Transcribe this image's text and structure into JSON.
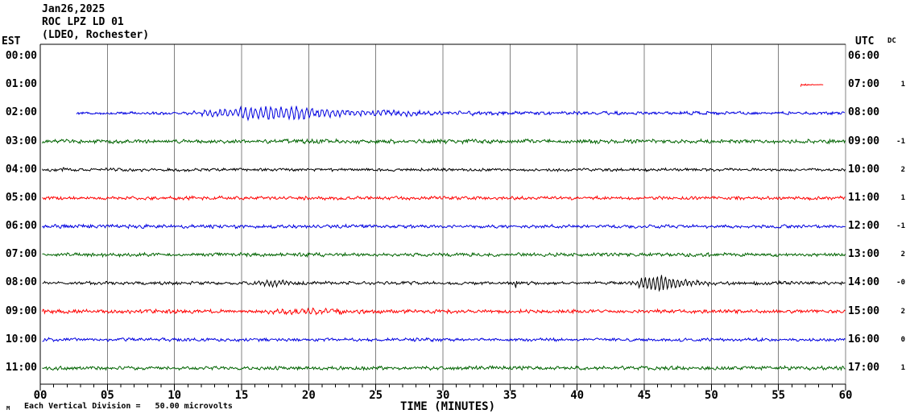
{
  "window": {
    "title_date": "Jan26,2025",
    "title_station": "ROC LPZ LD 01",
    "title_location": "(LDEO, Rochester)"
  },
  "axes": {
    "left_header": "EST",
    "right_header": "UTC",
    "dc_header": "DC",
    "xlabel": "TIME (MINUTES)",
    "x_tick_labels": [
      "00",
      "05",
      "10",
      "15",
      "20",
      "25",
      "30",
      "35",
      "40",
      "45",
      "50",
      "55",
      "60"
    ]
  },
  "footer": {
    "watermark": "M",
    "scale_note": "Each Vertical Division =   50.00 microvolts"
  },
  "colors": {
    "background": "#ffffff",
    "frame": "#000000",
    "grid": "#808080",
    "black": "#000000",
    "red": "#ff0000",
    "blue": "#0000e0",
    "green": "#006400"
  },
  "chart_data": {
    "type": "line",
    "title": "Helicorder ROC LPZ LD 01 (LDEO, Rochester) Jan26,2025",
    "xlabel": "TIME (MINUTES)",
    "x_range": [
      0,
      60
    ],
    "x_major_tick": 5,
    "x_minor_tick": 1,
    "scale_note": "Each Vertical Division = 50.00 microvolts",
    "events": [
      {
        "row_est": "01:00",
        "row_utc": "07:00",
        "start_min": 56.7,
        "end_min": 58.3,
        "description": "short red glitch/calibration mark"
      },
      {
        "row_est": "02:00",
        "row_utc": "08:00",
        "start_min": 11,
        "end_min": 38,
        "description": "emergent oscillatory event, peak amplitude ~min 15-20"
      },
      {
        "row_est": "08:00",
        "row_utc": "14:00",
        "start_min": 43.5,
        "end_min": 52,
        "description": "event burst peaking ~min 46; isolated spike at min 35.5"
      }
    ],
    "rows": [
      {
        "est": "00:00",
        "utc": "06:00",
        "dc": "",
        "color_key": "black",
        "trace": null
      },
      {
        "est": "01:00",
        "utc": "07:00",
        "dc": "1",
        "color_key": "red",
        "trace": {
          "start": 56.65,
          "end": 58.35,
          "seed": 7,
          "osc_period": 0.3,
          "spikes": [],
          "amp_env": [
            [
              56.65,
              2.2
            ],
            [
              57.1,
              1.8
            ],
            [
              57.45,
              1.0
            ],
            [
              57.6,
              0.25
            ],
            [
              58.35,
              0.25
            ]
          ],
          "osc_env": []
        }
      },
      {
        "est": "02:00",
        "utc": "08:00",
        "dc": "",
        "color_key": "blue",
        "trace": {
          "start": 2.7,
          "end": 60,
          "seed": 12,
          "osc_period": 0.38,
          "spikes": [],
          "amp_env": [
            [
              2.7,
              1.5
            ],
            [
              10.5,
              1.8
            ],
            [
              13,
              2.5
            ],
            [
              16,
              3.0
            ],
            [
              21,
              3.0
            ],
            [
              26,
              2.6
            ],
            [
              32,
              2.2
            ],
            [
              40,
              2.0
            ],
            [
              60,
              1.8
            ]
          ],
          "osc_env": [
            [
              10.5,
              0
            ],
            [
              12,
              2
            ],
            [
              13.5,
              3.5
            ],
            [
              15,
              5.5
            ],
            [
              16.5,
              6.5
            ],
            [
              18,
              6.5
            ],
            [
              19.5,
              6
            ],
            [
              21,
              4
            ],
            [
              23,
              3
            ],
            [
              26,
              2.2
            ],
            [
              30,
              1.4
            ],
            [
              34,
              0.7
            ],
            [
              38,
              0
            ]
          ]
        }
      },
      {
        "est": "03:00",
        "utc": "09:00",
        "dc": "-1",
        "color_key": "green",
        "trace": {
          "start": 0.15,
          "end": 60,
          "seed": 23,
          "osc_period": 0.3,
          "spikes": [],
          "amp_env": [
            [
              0.15,
              2.4
            ],
            [
              12,
              2.2
            ],
            [
              25,
              2.6
            ],
            [
              40,
              2.3
            ],
            [
              60,
              2.3
            ]
          ],
          "osc_env": []
        }
      },
      {
        "est": "04:00",
        "utc": "10:00",
        "dc": "2",
        "color_key": "black",
        "trace": {
          "start": 0.15,
          "end": 60,
          "seed": 34,
          "osc_period": 0.3,
          "spikes": [
            [
              1.7,
              3
            ]
          ],
          "amp_env": [
            [
              0.15,
              1.8
            ],
            [
              60,
              1.7
            ]
          ],
          "osc_env": []
        }
      },
      {
        "est": "05:00",
        "utc": "11:00",
        "dc": "1",
        "color_key": "red",
        "trace": {
          "start": 0.15,
          "end": 60,
          "seed": 45,
          "osc_period": 0.3,
          "spikes": [],
          "amp_env": [
            [
              0.15,
              2.3
            ],
            [
              2,
              2.0
            ],
            [
              60,
              2.0
            ]
          ],
          "osc_env": []
        }
      },
      {
        "est": "06:00",
        "utc": "12:00",
        "dc": "-1",
        "color_key": "blue",
        "trace": {
          "start": 0.15,
          "end": 60,
          "seed": 56,
          "osc_period": 0.3,
          "spikes": [],
          "amp_env": [
            [
              0.15,
              2.9
            ],
            [
              1.5,
              2.2
            ],
            [
              30,
              2.0
            ],
            [
              60,
              1.9
            ]
          ],
          "osc_env": []
        }
      },
      {
        "est": "07:00",
        "utc": "13:00",
        "dc": "2",
        "color_key": "green",
        "trace": {
          "start": 0.15,
          "end": 60,
          "seed": 67,
          "osc_period": 0.3,
          "spikes": [],
          "amp_env": [
            [
              0.15,
              2.2
            ],
            [
              60,
              2.1
            ]
          ],
          "osc_env": []
        }
      },
      {
        "est": "08:00",
        "utc": "14:00",
        "dc": "-0",
        "color_key": "black",
        "trace": {
          "start": 0.15,
          "end": 60,
          "seed": 78,
          "osc_period": 0.3,
          "spikes": [
            [
              35.45,
              6
            ]
          ],
          "amp_env": [
            [
              0.15,
              1.7
            ],
            [
              15,
              1.9
            ],
            [
              17,
              2.4
            ],
            [
              20,
              1.9
            ],
            [
              43,
              1.8
            ],
            [
              48,
              2.6
            ],
            [
              52,
              2.2
            ],
            [
              60,
              1.9
            ]
          ],
          "osc_env": [
            [
              15.3,
              0
            ],
            [
              16.2,
              1.8
            ],
            [
              17.3,
              2.4
            ],
            [
              18.6,
              1.6
            ],
            [
              19.8,
              0
            ],
            [
              43.4,
              0
            ],
            [
              44.3,
              2.5
            ],
            [
              45.2,
              6
            ],
            [
              45.9,
              9
            ],
            [
              46.5,
              8
            ],
            [
              47.2,
              5.5
            ],
            [
              48,
              3
            ],
            [
              49.2,
              1.5
            ],
            [
              50.5,
              0.6
            ],
            [
              52,
              0
            ]
          ]
        }
      },
      {
        "est": "09:00",
        "utc": "15:00",
        "dc": "2",
        "color_key": "red",
        "trace": {
          "start": 0.15,
          "end": 60,
          "seed": 89,
          "osc_period": 0.45,
          "spikes": [],
          "amp_env": [
            [
              0.15,
              2.6
            ],
            [
              2,
              2.2
            ],
            [
              16,
              2.2
            ],
            [
              18,
              3.0
            ],
            [
              21,
              3.0
            ],
            [
              24,
              2.6
            ],
            [
              27,
              2.3
            ],
            [
              60,
              2.0
            ]
          ],
          "osc_env": [
            [
              16.5,
              0
            ],
            [
              18,
              1.4
            ],
            [
              21,
              1.4
            ],
            [
              23.5,
              0
            ]
          ]
        }
      },
      {
        "est": "10:00",
        "utc": "16:00",
        "dc": "0",
        "color_key": "blue",
        "trace": {
          "start": 0.15,
          "end": 60,
          "seed": 90,
          "osc_period": 0.3,
          "spikes": [],
          "amp_env": [
            [
              0.15,
              2.6
            ],
            [
              1.5,
              2.0
            ],
            [
              60,
              1.8
            ]
          ],
          "osc_env": []
        }
      },
      {
        "est": "11:00",
        "utc": "17:00",
        "dc": "1",
        "color_key": "green",
        "trace": {
          "start": 0.15,
          "end": 60,
          "seed": 101,
          "osc_period": 0.3,
          "spikes": [],
          "amp_env": [
            [
              0.15,
              2.3
            ],
            [
              60,
              2.3
            ]
          ],
          "osc_env": []
        }
      }
    ]
  }
}
